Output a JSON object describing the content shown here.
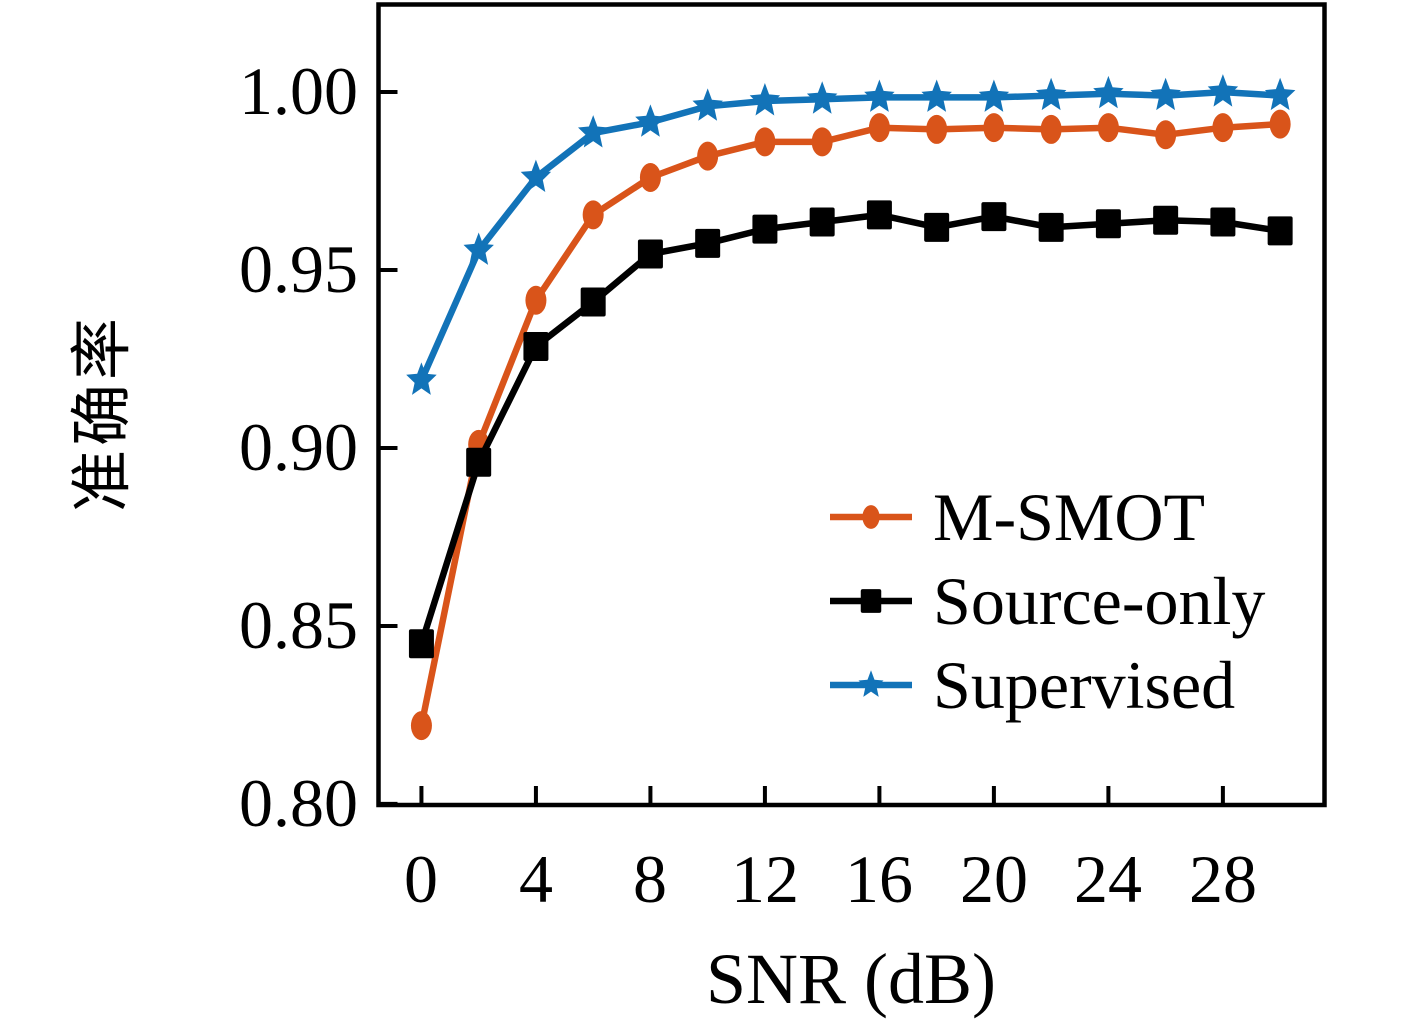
{
  "figure": {
    "background": "#ffffff",
    "frame_color": "#000000"
  },
  "chart_data": {
    "type": "line",
    "title": "",
    "xlabel": "SNR (dB)",
    "ylabel": "准确率",
    "grid": false,
    "legend_position": "lower-right-inside",
    "xlim": [
      -1.5,
      31.55
    ],
    "ylim": [
      0.7997,
      1.0246
    ],
    "x_tick_values": [
      0,
      4,
      8,
      12,
      16,
      20,
      24,
      28
    ],
    "x_tick_labels": [
      "0",
      "4",
      "8",
      "12",
      "16",
      "20",
      "24",
      "28"
    ],
    "y_tick_values": [
      1.0,
      0.95,
      0.9,
      0.85,
      0.8
    ],
    "y_tick_labels": [
      "1.00",
      "0.95",
      "0.90",
      "0.85",
      "0.80"
    ],
    "x": [
      0,
      2,
      4,
      6,
      8,
      10,
      12,
      14,
      16,
      18,
      20,
      22,
      24,
      26,
      28,
      30
    ],
    "series": [
      {
        "name": "M-SMOT",
        "color": "#d9541a",
        "marker": "circle",
        "values": [
          0.822,
          0.901,
          0.9415,
          0.9655,
          0.976,
          0.982,
          0.986,
          0.986,
          0.99,
          0.9895,
          0.99,
          0.9895,
          0.99,
          0.988,
          0.99,
          0.991
        ]
      },
      {
        "name": "Source-only",
        "color": "#000000",
        "marker": "square",
        "values": [
          0.845,
          0.896,
          0.9285,
          0.941,
          0.9545,
          0.9575,
          0.9615,
          0.9635,
          0.9655,
          0.962,
          0.965,
          0.962,
          0.963,
          0.964,
          0.9635,
          0.961
        ]
      },
      {
        "name": "Supervised",
        "color": "#1273b8",
        "marker": "star",
        "values": [
          0.919,
          0.9555,
          0.976,
          0.9885,
          0.9915,
          0.996,
          0.9975,
          0.998,
          0.9985,
          0.9985,
          0.9985,
          0.999,
          0.9995,
          0.999,
          1.0,
          0.999
        ]
      }
    ]
  }
}
